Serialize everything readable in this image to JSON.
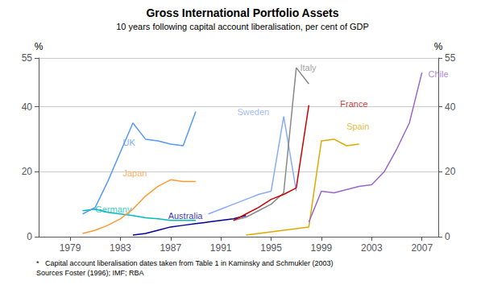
{
  "chart_data": {
    "type": "line",
    "title": "Gross International Portfolio Assets",
    "subtitle": "10 years following capital account liberalisation, per cent of GDP",
    "footnotes": [
      "*   Capital account liberalisation dates taken from Table 1 in Kaminsky and Schmukler (2003)",
      "Sources Foster (1996); IMF; RBA"
    ],
    "ylabel": "%",
    "y2label": "%",
    "xlim": [
      1976.5,
      2008.3
    ],
    "xticks": [
      1979,
      1983,
      1987,
      1991,
      1995,
      1999,
      2003,
      2007
    ],
    "ylim": [
      0,
      55
    ],
    "yticks": [
      0,
      20,
      40
    ],
    "y2lim": [
      0,
      55
    ],
    "y2ticks": [
      0,
      20,
      40
    ],
    "grid": true,
    "series": [
      {
        "name": "Germany",
        "color": "#00bbbb",
        "x": [
          1980,
          1981,
          1982,
          1983,
          1984,
          1985,
          1986,
          1987,
          1988,
          1989
        ],
        "values": [
          8.0,
          8.5,
          7.5,
          7.0,
          6.5,
          5.8,
          5.5,
          5.0,
          5.0,
          5.0
        ]
      },
      {
        "name": "UK",
        "color": "#5599ff",
        "x": [
          1980,
          1981,
          1982,
          1983,
          1984,
          1985,
          1986,
          1987,
          1988,
          1989
        ],
        "values": [
          7.0,
          9.0,
          17.0,
          26.0,
          35.0,
          30.0,
          29.5,
          28.5,
          28.0,
          38.5
        ]
      },
      {
        "name": "Japan",
        "color": "#ff9933",
        "x": [
          1980,
          1981,
          1982,
          1983,
          1984,
          1985,
          1986,
          1987,
          1988,
          1989
        ],
        "values": [
          1.0,
          2.0,
          3.5,
          5.5,
          8.5,
          12.5,
          15.5,
          17.5,
          17.0,
          17.0
        ]
      },
      {
        "name": "Australia",
        "color": "#000099",
        "x": [
          1984,
          1985,
          1986,
          1987,
          1988,
          1989,
          1990,
          1991,
          1992,
          1993
        ],
        "values": [
          0.5,
          1.0,
          2.0,
          3.0,
          3.5,
          4.0,
          4.5,
          5.0,
          5.5,
          6.5
        ]
      },
      {
        "name": "Sweden",
        "color": "#88aaff",
        "x": [
          1990,
          1991,
          1992,
          1993,
          1994,
          1995,
          1996,
          1997
        ],
        "values": [
          7.0,
          8.5,
          10.0,
          11.5,
          13.0,
          14.0,
          37.0,
          14.0
        ]
      },
      {
        "name": "Italy",
        "color": "#888888",
        "x": [
          1992,
          1993,
          1994,
          1995,
          1996,
          1997,
          1998
        ],
        "values": [
          5.0,
          6.0,
          8.0,
          10.0,
          13.5,
          52.0,
          47.0
        ]
      },
      {
        "name": "France",
        "color": "#cc0000",
        "x": [
          1992,
          1993,
          1994,
          1995,
          1996,
          1997,
          1998
        ],
        "values": [
          5.0,
          7.0,
          9.0,
          11.5,
          13.0,
          15.0,
          40.5
        ]
      },
      {
        "name": "Spain",
        "color": "#ddaa00",
        "x": [
          1993,
          1994,
          1995,
          1996,
          1997,
          1998,
          1999,
          2000,
          2001,
          2002
        ],
        "values": [
          0.5,
          1.0,
          1.5,
          2.0,
          2.5,
          3.0,
          29.5,
          30.0,
          28.0,
          28.5
        ]
      },
      {
        "name": "Chile",
        "color": "#9966cc",
        "x": [
          1998,
          1999,
          2000,
          2001,
          2002,
          2003,
          2004,
          2005,
          2006,
          2007
        ],
        "values": [
          4.5,
          14.0,
          13.5,
          14.5,
          15.5,
          16.0,
          20.0,
          27.0,
          35.0,
          50.5
        ]
      }
    ],
    "annotations": [
      {
        "text": "Germany",
        "x": 1981.0,
        "y": 8.5
      },
      {
        "text": "UK",
        "x": 1983.2,
        "y": 29.0
      },
      {
        "text": "Japan",
        "x": 1983.2,
        "y": 19.5
      },
      {
        "text": "Australia",
        "x": 1986.8,
        "y": 6.5
      },
      {
        "text": "Sweden",
        "x": 1992.3,
        "y": 38.5
      },
      {
        "text": "Italy",
        "x": 1997.3,
        "y": 52.0
      },
      {
        "text": "France",
        "x": 2000.5,
        "y": 41.0
      },
      {
        "text": "Spain",
        "x": 2001.0,
        "y": 34.0
      },
      {
        "text": "Chile",
        "x": 2007.5,
        "y": 50.0
      }
    ]
  }
}
